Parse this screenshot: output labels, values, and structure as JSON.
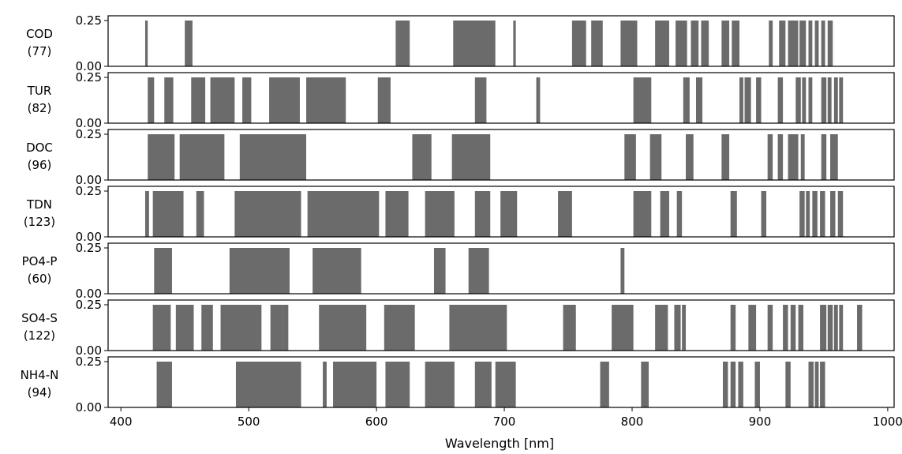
{
  "chart_data": {
    "type": "bar",
    "xlabel": "Wavelength [nm]",
    "xlim": [
      390,
      1005
    ],
    "xticks": [
      400,
      500,
      600,
      700,
      800,
      900,
      1000
    ],
    "ylim": [
      0,
      0.25
    ],
    "yticks": [
      0.0,
      0.25
    ],
    "ytick_labels": [
      "0.00",
      "0.25"
    ],
    "bar_color": "#6b6b6b",
    "panels": [
      {
        "name": "COD",
        "count": "(77)",
        "bars": [
          [
            419,
            421
          ],
          [
            450,
            456
          ],
          [
            615,
            626
          ],
          [
            660,
            693
          ],
          [
            707,
            709
          ],
          [
            753,
            764
          ],
          [
            768,
            777
          ],
          [
            791,
            804
          ],
          [
            818,
            829
          ],
          [
            834,
            843
          ],
          [
            846,
            852
          ],
          [
            854,
            860
          ],
          [
            870,
            876
          ],
          [
            878,
            884
          ],
          [
            907,
            910
          ],
          [
            915,
            920
          ],
          [
            922,
            930
          ],
          [
            931,
            936
          ],
          [
            938,
            941
          ],
          [
            943,
            946
          ],
          [
            948,
            951
          ],
          [
            953,
            957
          ]
        ]
      },
      {
        "name": "TUR",
        "count": "(82)",
        "bars": [
          [
            421,
            426
          ],
          [
            434,
            441
          ],
          [
            455,
            466
          ],
          [
            470,
            489
          ],
          [
            495,
            502
          ],
          [
            516,
            540
          ],
          [
            545,
            576
          ],
          [
            601,
            611
          ],
          [
            677,
            686
          ],
          [
            725,
            728
          ],
          [
            801,
            815
          ],
          [
            840,
            845
          ],
          [
            850,
            855
          ],
          [
            884,
            887
          ],
          [
            888,
            893
          ],
          [
            897,
            901
          ],
          [
            914,
            918
          ],
          [
            928,
            932
          ],
          [
            933,
            936
          ],
          [
            938,
            941
          ],
          [
            948,
            952
          ],
          [
            953,
            956
          ],
          [
            958,
            961
          ],
          [
            962,
            965
          ]
        ]
      },
      {
        "name": "DOC",
        "count": "(96)",
        "bars": [
          [
            421,
            442
          ],
          [
            446,
            481
          ],
          [
            493,
            545
          ],
          [
            628,
            643
          ],
          [
            659,
            689
          ],
          [
            794,
            803
          ],
          [
            814,
            823
          ],
          [
            842,
            848
          ],
          [
            870,
            876
          ],
          [
            906,
            910
          ],
          [
            914,
            918
          ],
          [
            922,
            930
          ],
          [
            932,
            935
          ],
          [
            948,
            952
          ],
          [
            955,
            961
          ]
        ]
      },
      {
        "name": "TDN",
        "count": "(123)",
        "bars": [
          [
            419,
            422
          ],
          [
            425,
            449
          ],
          [
            459,
            465
          ],
          [
            489,
            541
          ],
          [
            546,
            602
          ],
          [
            607,
            625
          ],
          [
            638,
            661
          ],
          [
            677,
            689
          ],
          [
            697,
            710
          ],
          [
            742,
            753
          ],
          [
            801,
            815
          ],
          [
            822,
            829
          ],
          [
            835,
            839
          ],
          [
            877,
            882
          ],
          [
            901,
            905
          ],
          [
            931,
            935
          ],
          [
            936,
            939
          ],
          [
            941,
            945
          ],
          [
            947,
            951
          ],
          [
            955,
            959
          ],
          [
            961,
            965
          ]
        ]
      },
      {
        "name": "PO4-P",
        "count": "(60)",
        "bars": [
          [
            426,
            440
          ],
          [
            485,
            532
          ],
          [
            550,
            588
          ],
          [
            645,
            654
          ],
          [
            672,
            688
          ],
          [
            791,
            794
          ]
        ]
      },
      {
        "name": "SO4-S",
        "count": "(122)",
        "bars": [
          [
            425,
            439
          ],
          [
            443,
            457
          ],
          [
            463,
            472
          ],
          [
            478,
            510
          ],
          [
            517,
            527
          ],
          [
            527,
            531
          ],
          [
            555,
            592
          ],
          [
            606,
            630
          ],
          [
            657,
            702
          ],
          [
            746,
            756
          ],
          [
            784,
            801
          ],
          [
            818,
            828
          ],
          [
            833,
            838
          ],
          [
            839,
            842
          ],
          [
            877,
            881
          ],
          [
            891,
            897
          ],
          [
            906,
            910
          ],
          [
            918,
            922
          ],
          [
            924,
            928
          ],
          [
            930,
            934
          ],
          [
            947,
            952
          ],
          [
            953,
            957
          ],
          [
            958,
            961
          ],
          [
            962,
            965
          ],
          [
            976,
            980
          ]
        ]
      },
      {
        "name": "NH4-N",
        "count": "(94)",
        "bars": [
          [
            428,
            440
          ],
          [
            490,
            541
          ],
          [
            558,
            561
          ],
          [
            566,
            600
          ],
          [
            607,
            626
          ],
          [
            638,
            661
          ],
          [
            677,
            690
          ],
          [
            693,
            709
          ],
          [
            775,
            782
          ],
          [
            807,
            813
          ],
          [
            871,
            875
          ],
          [
            877,
            881
          ],
          [
            883,
            887
          ],
          [
            896,
            900
          ],
          [
            920,
            924
          ],
          [
            938,
            942
          ],
          [
            943,
            946
          ],
          [
            947,
            951
          ]
        ]
      }
    ]
  }
}
